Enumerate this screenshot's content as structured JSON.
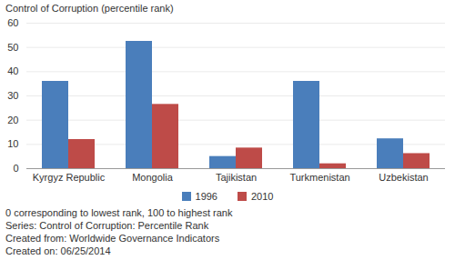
{
  "chart_data": {
    "type": "bar",
    "y_label": "Control of Corruption (percentile rank)",
    "categories": [
      "Kyrgyz Republic",
      "Mongolia",
      "Tajikistan",
      "Turkmenistan",
      "Uzbekistan"
    ],
    "series": [
      {
        "name": "1996",
        "color": "#4a7ebb",
        "values": [
          36,
          52.5,
          5,
          36,
          12.3
        ]
      },
      {
        "name": "2010",
        "color": "#be4b48",
        "values": [
          12,
          26.5,
          8.5,
          2,
          6.2
        ]
      }
    ],
    "ylim": [
      0,
      60
    ],
    "yticks": [
      0,
      10,
      20,
      30,
      40,
      50,
      60
    ],
    "grid": true,
    "legend": "bottom",
    "notes": [
      "0 corresponding to lowest rank, 100 to highest rank",
      "Series: Control of Corruption: Percentile Rank",
      "Created from: Worldwide Governance Indicators",
      "Created on: 06/25/2014"
    ]
  }
}
